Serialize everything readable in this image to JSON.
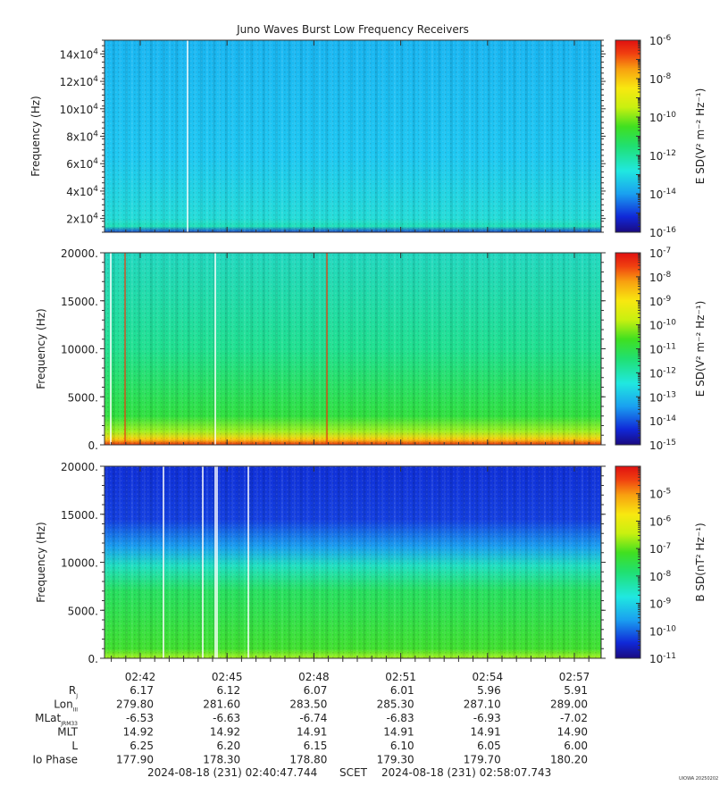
{
  "title": "Juno Waves Burst Low Frequency Receivers",
  "watermark": "UIOWA 20250202",
  "scet_label": "SCET",
  "time_start": "2024-08-18 (231) 02:40:47.744",
  "time_end": "2024-08-18 (231) 02:58:07.743",
  "x_ticks": [
    "02:42",
    "02:45",
    "02:48",
    "02:51",
    "02:54",
    "02:57"
  ],
  "ephemeris": {
    "rows": [
      {
        "label": "R",
        "sub": "J",
        "values": [
          "6.17",
          "6.12",
          "6.07",
          "6.01",
          "5.96",
          "5.91"
        ]
      },
      {
        "label": "Lon",
        "sub": "III",
        "values": [
          "279.80",
          "281.60",
          "283.50",
          "285.30",
          "287.10",
          "289.00"
        ]
      },
      {
        "label": "MLat",
        "sub": "JRM33",
        "values": [
          "-6.53",
          "-6.63",
          "-6.74",
          "-6.83",
          "-6.93",
          "-7.02"
        ]
      },
      {
        "label": "MLT",
        "sub": "",
        "values": [
          "14.92",
          "14.92",
          "14.91",
          "14.91",
          "14.91",
          "14.90"
        ]
      },
      {
        "label": "L",
        "sub": "",
        "values": [
          "6.25",
          "6.20",
          "6.15",
          "6.10",
          "6.05",
          "6.00"
        ]
      },
      {
        "label": "Io Phase",
        "sub": "",
        "values": [
          "177.90",
          "178.30",
          "178.80",
          "179.30",
          "179.70",
          "180.20"
        ]
      }
    ]
  },
  "chart_data": [
    {
      "type": "heatmap",
      "ylabel": "Frequency (Hz)",
      "ylim": [
        10000,
        150000
      ],
      "y_ticks": [
        {
          "value": 20000,
          "mant": "2x10",
          "exp": "4"
        },
        {
          "value": 40000,
          "mant": "4x10",
          "exp": "4"
        },
        {
          "value": 60000,
          "mant": "6x10",
          "exp": "4"
        },
        {
          "value": 80000,
          "mant": "8x10",
          "exp": "4"
        },
        {
          "value": 100000,
          "mant": "10x10",
          "exp": "4"
        },
        {
          "value": 120000,
          "mant": "12x10",
          "exp": "4"
        },
        {
          "value": 140000,
          "mant": "14x10",
          "exp": "4"
        }
      ],
      "colorbar": {
        "label": "E SD(V² m⁻² Hz⁻¹)",
        "log_range": [
          -16,
          -6
        ],
        "ticks": [
          -6,
          -8,
          -10,
          -12,
          -14,
          -16
        ]
      },
      "background": "#1ec8f2"
    },
    {
      "type": "heatmap",
      "ylabel": "Frequency (Hz)",
      "ylim": [
        0,
        20000
      ],
      "y_ticks": [
        {
          "value": 0,
          "label": "0."
        },
        {
          "value": 5000,
          "label": "5000."
        },
        {
          "value": 10000,
          "label": "10000."
        },
        {
          "value": 15000,
          "label": "15000."
        },
        {
          "value": 20000,
          "label": "20000."
        }
      ],
      "colorbar": {
        "label": "E SD(V² m⁻² Hz⁻¹)",
        "log_range": [
          -15,
          -7
        ],
        "ticks": [
          -7,
          -8,
          -9,
          -10,
          -11,
          -12,
          -13,
          -14,
          -15
        ]
      },
      "background": "#20e0a8"
    },
    {
      "type": "heatmap",
      "ylabel": "Frequency (Hz)",
      "ylim": [
        0,
        20000
      ],
      "y_ticks": [
        {
          "value": 0,
          "label": "0."
        },
        {
          "value": 5000,
          "label": "5000."
        },
        {
          "value": 10000,
          "label": "10000."
        },
        {
          "value": 15000,
          "label": "15000."
        },
        {
          "value": 20000,
          "label": "20000."
        }
      ],
      "colorbar": {
        "label": "B SD(nT² Hz⁻¹)",
        "log_range": [
          -11,
          -4
        ],
        "ticks": [
          -5,
          -6,
          -7,
          -8,
          -9,
          -10,
          -11
        ]
      },
      "background": "#1440e0"
    }
  ]
}
